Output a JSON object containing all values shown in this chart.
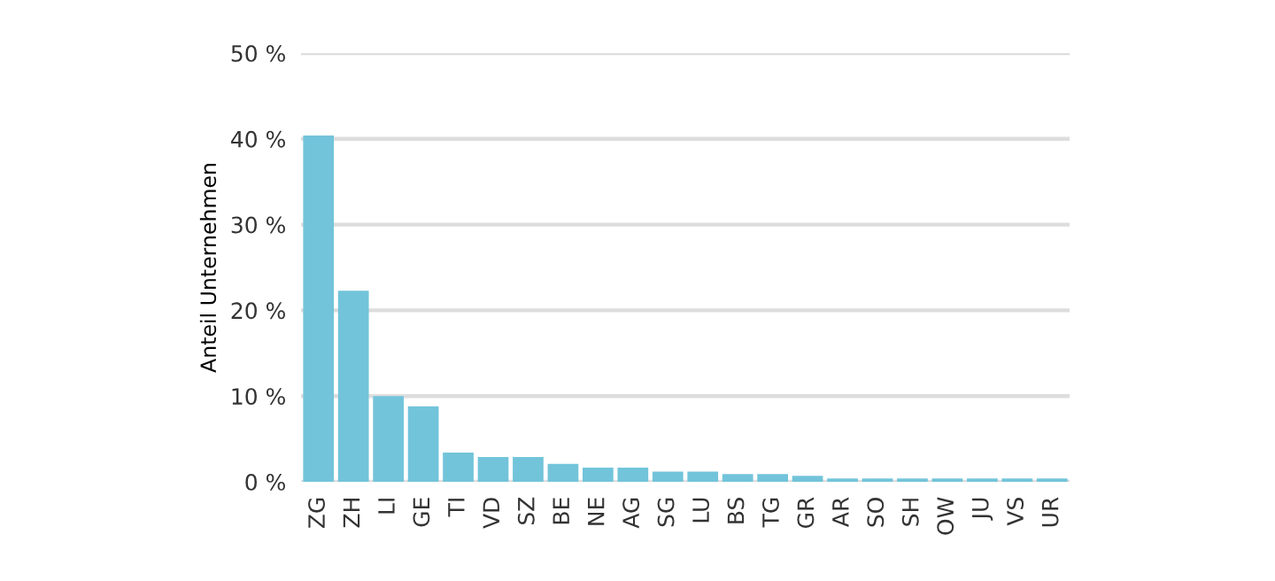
{
  "chart_data": {
    "type": "bar",
    "ylabel": "Anteil Unternehmen",
    "categories": [
      "ZG",
      "ZH",
      "LI",
      "GE",
      "TI",
      "VD",
      "SZ",
      "BE",
      "NE",
      "AG",
      "SG",
      "LU",
      "BS",
      "TG",
      "GR",
      "AR",
      "SO",
      "SH",
      "OW",
      "JU",
      "VS",
      "UR"
    ],
    "values": [
      40.4,
      22.3,
      10.0,
      8.8,
      3.4,
      2.9,
      2.9,
      2.1,
      1.65,
      1.65,
      1.2,
      1.2,
      0.9,
      0.9,
      0.7,
      0.4,
      0.4,
      0.4,
      0.4,
      0.4,
      0.4,
      0.4
    ],
    "color": "#72c4da",
    "ylim": [
      0,
      50
    ],
    "yticks": [
      {
        "value": 0,
        "label": "0 %"
      },
      {
        "value": 10,
        "label": "10 %"
      },
      {
        "value": 20,
        "label": "20 %"
      },
      {
        "value": 30,
        "label": "30 %"
      },
      {
        "value": 40,
        "label": "40 %"
      },
      {
        "value": 50,
        "label": "50 %"
      }
    ],
    "grid": "y"
  }
}
